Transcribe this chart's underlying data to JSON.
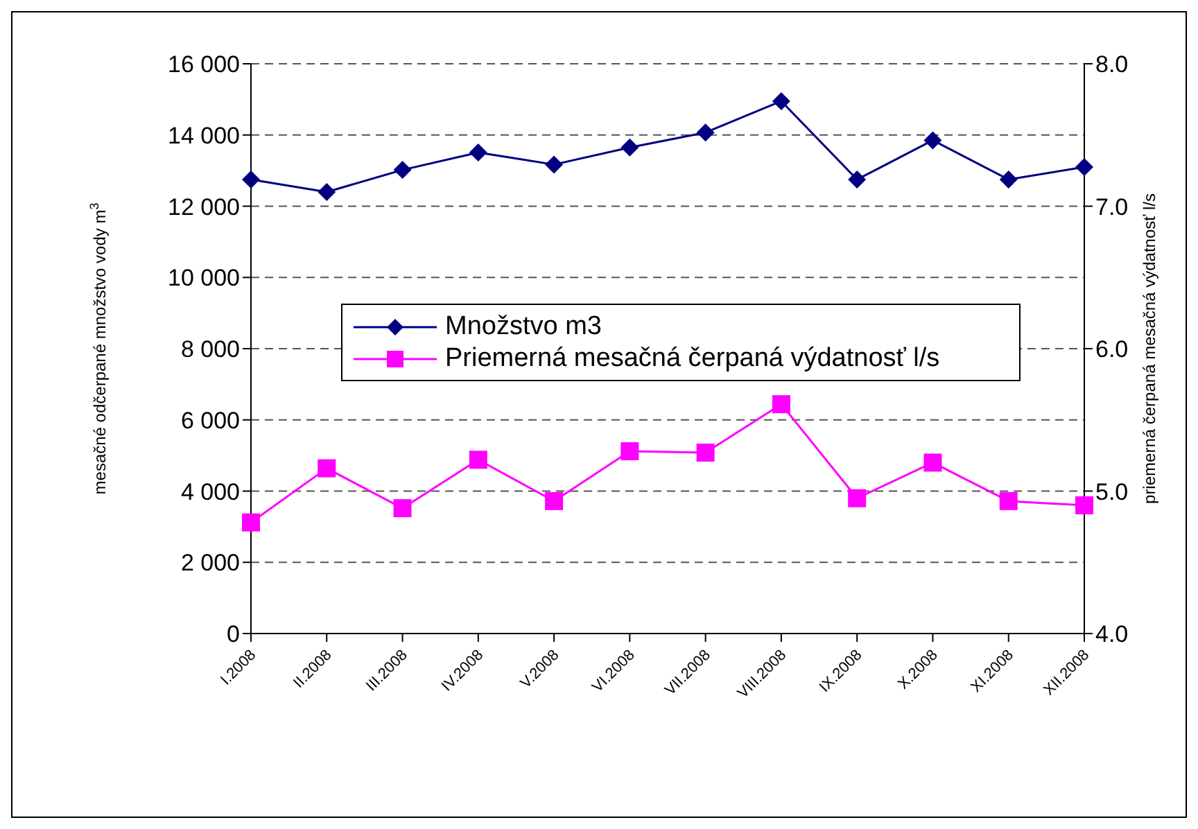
{
  "chart_data": {
    "type": "line",
    "categories": [
      "I.2008",
      "II.2008",
      "III.2008",
      "IV.2008",
      "V.2008",
      "VI.2008",
      "VII.2008",
      "VIII.2008",
      "IX.2008",
      "X.2008",
      "XI.2008",
      "XII.2008"
    ],
    "series": [
      {
        "name": "Množstvo m3",
        "color": "#000080",
        "marker": "diamond",
        "values": [
          12750,
          12400,
          13020,
          13510,
          13170,
          13650,
          14070,
          14950,
          12750,
          13850,
          12750,
          13100
        ]
      },
      {
        "name": "Priemerná mesačná čerpaná výdatnosť l/s",
        "color": "#ff00ff",
        "marker": "square",
        "axis": "y2",
        "values": [
          4.78,
          5.16,
          4.88,
          5.22,
          4.93,
          5.28,
          5.27,
          5.61,
          4.95,
          5.2,
          4.93,
          4.9
        ]
      }
    ],
    "ylabel": "mesačné odčerpané množstvo vody m$^{3}$",
    "y2label": "priemerná čerpaná mesačná výdatnosť l/s",
    "ylim": [
      0,
      16000
    ],
    "yticks": [
      {
        "value": 0,
        "label": "0"
      },
      {
        "value": 2000,
        "label": "2 000"
      },
      {
        "value": 4000,
        "label": "4 000"
      },
      {
        "value": 6000,
        "label": "6 000"
      },
      {
        "value": 8000,
        "label": "8 000"
      },
      {
        "value": 10000,
        "label": "10 000"
      },
      {
        "value": 12000,
        "label": "12 000"
      },
      {
        "value": 14000,
        "label": "14 000"
      },
      {
        "value": 16000,
        "label": "16 000"
      }
    ],
    "y2lim": [
      4,
      8
    ],
    "y2ticks": [
      {
        "value": 4,
        "label": "4.0"
      },
      {
        "value": 5,
        "label": "5.0"
      },
      {
        "value": 6,
        "label": "6.0"
      },
      {
        "value": 7,
        "label": "7.0"
      },
      {
        "value": 8,
        "label": "8.0"
      }
    ],
    "grid": "y",
    "legend": "center",
    "line_style": "solid"
  }
}
